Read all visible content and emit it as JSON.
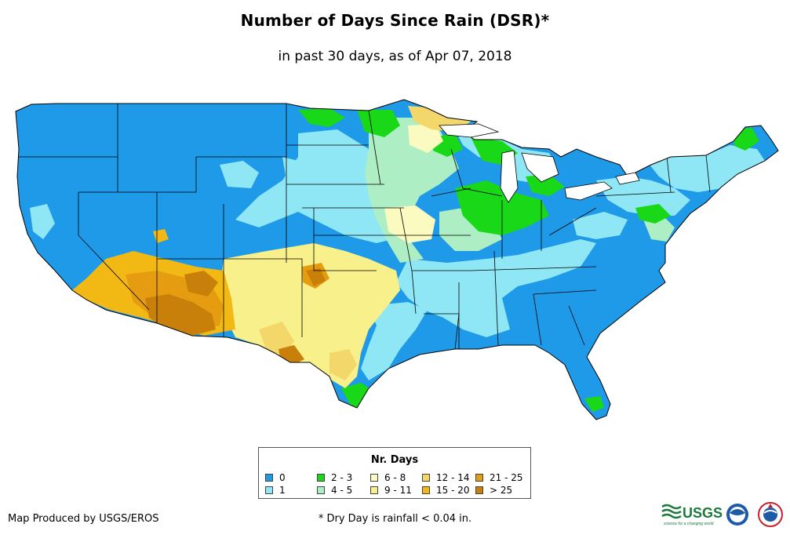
{
  "title": "Number of Days Since Rain (DSR)*",
  "subtitle": "in past 30 days, as of Apr 07, 2018",
  "legend": {
    "title": "Nr. Days",
    "items": [
      {
        "label": "0",
        "color": "#1e9ae8"
      },
      {
        "label": "1",
        "color": "#8fe6f5"
      },
      {
        "label": "2 - 3",
        "color": "#18d818"
      },
      {
        "label": "4 - 5",
        "color": "#aeeec4"
      },
      {
        "label": "6 - 8",
        "color": "#fbfac0"
      },
      {
        "label": "9 - 11",
        "color": "#f8f08a"
      },
      {
        "label": "12 - 14",
        "color": "#f3d76a"
      },
      {
        "label": "15 - 20",
        "color": "#f2b814"
      },
      {
        "label": "21 - 25",
        "color": "#e59c10"
      },
      {
        "label": "> 25",
        "color": "#c8800a"
      }
    ]
  },
  "credit": "Map Produced by USGS/EROS",
  "footnote": "* Dry Day is rainfall < 0.04 in.",
  "logos": {
    "usgs_text": "USGS",
    "usgs_tagline": "science for a changing world"
  }
}
